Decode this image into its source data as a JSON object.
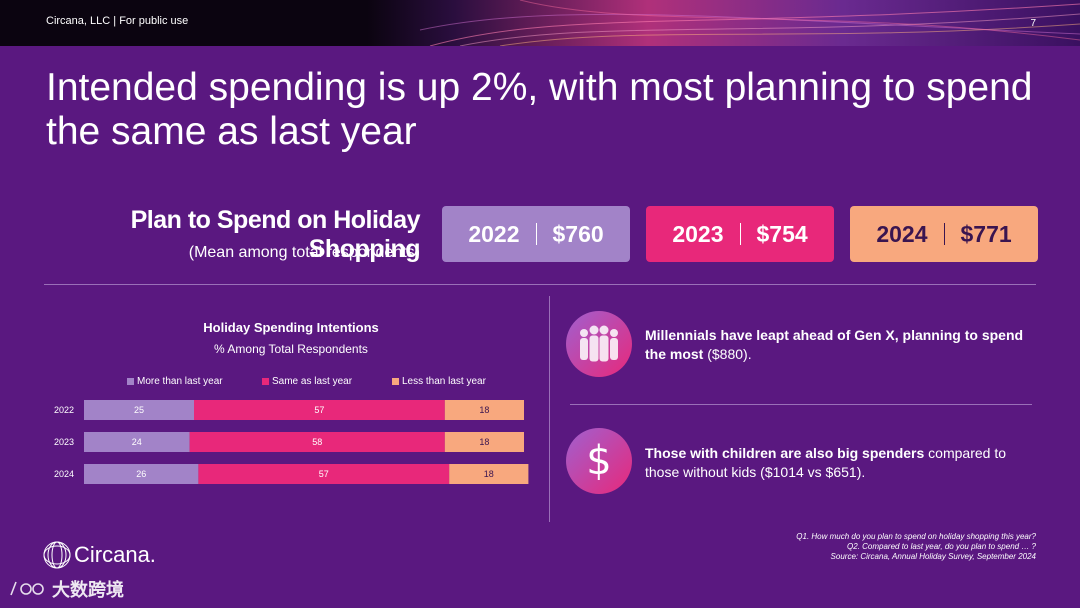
{
  "header": {
    "company": "Circana, LLC",
    "divider": "|",
    "visibility": "For public use",
    "page_number": "7"
  },
  "headline": "Intended spending is up 2%, with most planning to spend the same as last year",
  "spend_panel": {
    "title": "Plan to Spend on Holiday Shopping",
    "subtitle": "(Mean among total respondents)",
    "boxes": [
      {
        "year": "2022",
        "amount": "$760",
        "color": "#a283c8",
        "text_color": "#ffffff"
      },
      {
        "year": "2023",
        "amount": "$754",
        "color": "#e8287a",
        "text_color": "#ffffff"
      },
      {
        "year": "2024",
        "amount": "$771",
        "color": "#f8a87e",
        "text_color": "#3a1550"
      }
    ]
  },
  "chart_data": {
    "type": "bar",
    "orientation": "horizontal",
    "stacked": true,
    "title": "Holiday Spending Intentions",
    "subtitle": "% Among Total Respondents",
    "categories": [
      "2022",
      "2023",
      "2024"
    ],
    "series": [
      {
        "name": "More than last year",
        "values": [
          25,
          24,
          26
        ],
        "color": "#a283c8"
      },
      {
        "name": "Same as last year",
        "values": [
          57,
          58,
          57
        ],
        "color": "#e8287a"
      },
      {
        "name": "Less than last year",
        "values": [
          18,
          18,
          18
        ],
        "color": "#f8a87e"
      }
    ],
    "xlim": [
      0,
      100
    ],
    "grid": false,
    "legend": "top"
  },
  "insights": [
    {
      "icon": "people-silhouettes-icon",
      "bold": "Millennials have leapt ahead of Gen X, planning to spend the most",
      "rest": " ($880)."
    },
    {
      "icon": "dollar-sign-icon",
      "bold": "Those with children are also big spenders",
      "rest": " compared to those without kids ($1014 vs $651)."
    }
  ],
  "footnotes": [
    "Q1. How much do you plan to spend on holiday shopping this year?",
    "Q2. Compared to last year, do you plan to spend … ?",
    "Source: Circana, Annual Holiday Survey, September 2024"
  ],
  "logo": {
    "name": "Circana."
  },
  "watermark": {
    "text": "大数跨境"
  },
  "colors": {
    "background": "#5a1880",
    "accent_pink": "#e8287a",
    "accent_lavender": "#a283c8",
    "accent_peach": "#f8a87e"
  }
}
